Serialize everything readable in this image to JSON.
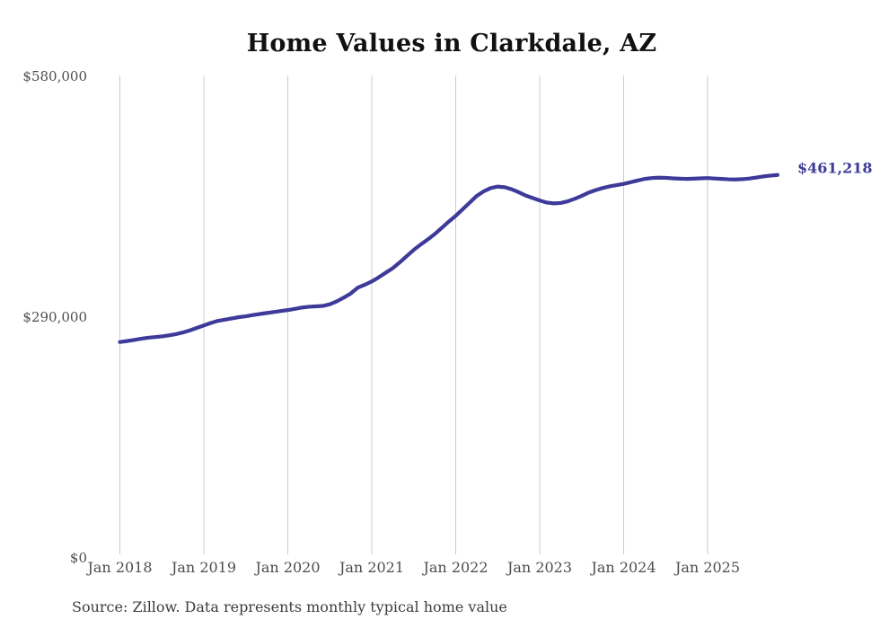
{
  "chart_data": {
    "type": "line",
    "title": "Home Values in Clarkdale, AZ",
    "source_note": "Source: Zillow. Data represents monthly typical home value",
    "end_label": "$461,218",
    "end_value": 461218,
    "series_name": "Monthly typical home value",
    "x_ticks": [
      "Jan 2018",
      "Jan 2019",
      "Jan 2020",
      "Jan 2021",
      "Jan 2022",
      "Jan 2023",
      "Jan 2024",
      "Jan 2025"
    ],
    "y_ticks": [
      {
        "label": "$580,000",
        "value": 580000
      },
      {
        "label": "$290,000",
        "value": 290000
      },
      {
        "label": "$0",
        "value": 0
      }
    ],
    "ylim": [
      0,
      580000
    ],
    "x_start": "Jan 2018",
    "x_end": "Nov 2025",
    "grid": "vertical-only",
    "legend": "none",
    "line_color": "#3d3a99",
    "grid_color": "#cccccc",
    "monthly_values": [
      260000,
      261200,
      262500,
      264000,
      265200,
      266000,
      266800,
      268000,
      269500,
      271500,
      274000,
      277000,
      280000,
      283000,
      285500,
      287000,
      288500,
      290000,
      291000,
      292500,
      293800,
      295000,
      296200,
      297400,
      298500,
      300000,
      301500,
      302500,
      303000,
      303500,
      305500,
      309000,
      313500,
      318500,
      325500,
      329000,
      333000,
      338000,
      343500,
      349000,
      356000,
      363500,
      371000,
      377500,
      383500,
      390000,
      397500,
      405000,
      412000,
      420000,
      428000,
      436000,
      441500,
      445500,
      447200,
      446500,
      444000,
      440500,
      436500,
      433500,
      430500,
      428000,
      427000,
      427500,
      429500,
      432500,
      436000,
      440000,
      443000,
      445500,
      447500,
      449000,
      450500,
      452500,
      454500,
      456500,
      457500,
      458000,
      457800,
      457200,
      456800,
      456500,
      456800,
      457200,
      457500,
      457000,
      456500,
      456000,
      455800,
      456200,
      457000,
      458200,
      459500,
      460500,
      461218
    ]
  }
}
